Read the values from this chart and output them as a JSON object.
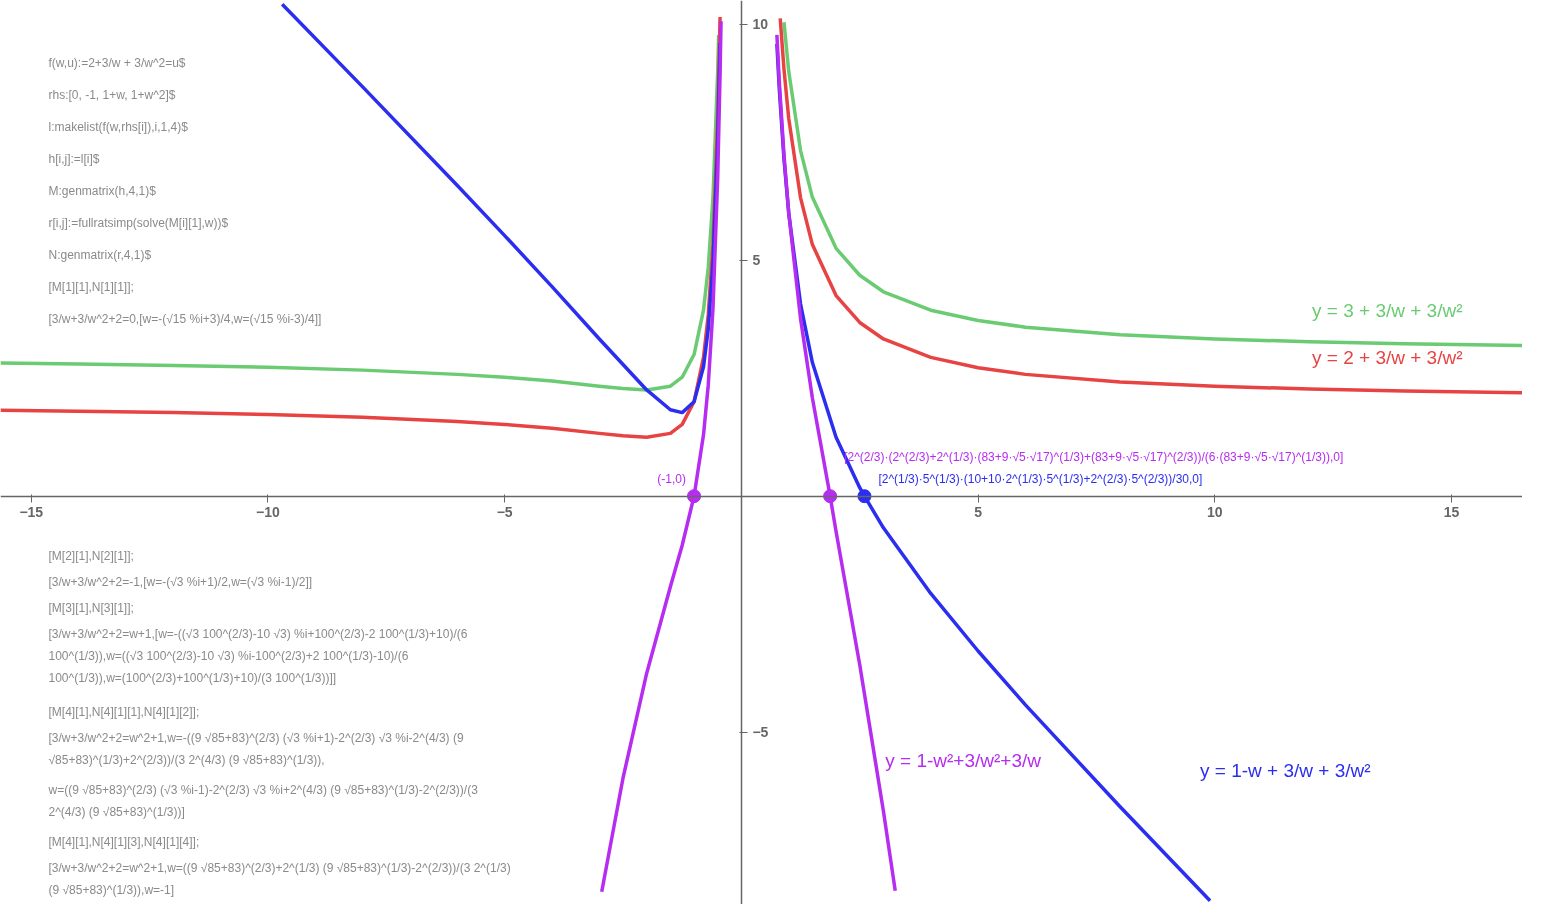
{
  "chart_data": {
    "type": "line",
    "xlim": [
      -15.65,
      16.5
    ],
    "ylim": [
      -8.65,
      10.5
    ],
    "xticks": [
      -15,
      -10,
      -5,
      5,
      10,
      15
    ],
    "yticks": [
      -5,
      5,
      10
    ],
    "grid": false,
    "series": [
      {
        "name": "y = 3 + 3/w + 3/w²",
        "color": "#6acb73",
        "marker": "none",
        "x": [
          -15.65,
          -14,
          -12,
          -10,
          -8,
          -6,
          -5,
          -4,
          -3,
          -2.5,
          -2,
          -1.5,
          -1.25,
          -1,
          -0.8,
          -0.7,
          -0.6,
          -0.5,
          -0.48,
          null,
          0.9,
          1,
          1.25,
          1.5,
          2,
          2.5,
          3,
          4,
          5,
          6,
          8,
          10,
          12,
          14,
          16.5
        ],
        "values": [
          2.82,
          2.8,
          2.77,
          2.73,
          2.67,
          2.58,
          2.52,
          2.44,
          2.33,
          2.28,
          2.25,
          2.33,
          2.52,
          3,
          3.94,
          4.84,
          6.33,
          9,
          9.77,
          null,
          10.04,
          9,
          7.32,
          6.33,
          5.25,
          4.68,
          4.33,
          3.94,
          3.72,
          3.58,
          3.42,
          3.33,
          3.27,
          3.23,
          3.19
        ]
      },
      {
        "name": "y = 2 + 3/w + 3/w²",
        "color": "#e84343",
        "marker": "none",
        "x": [
          -15.65,
          -14,
          -12,
          -10,
          -8,
          -6,
          -5,
          -4,
          -3,
          -2.5,
          -2,
          -1.5,
          -1.25,
          -1,
          -0.8,
          -0.7,
          -0.6,
          -0.5,
          -0.45,
          null,
          0.82,
          0.9,
          1,
          1.25,
          1.5,
          2,
          2.5,
          3,
          4,
          5,
          6,
          8,
          10,
          12,
          14,
          16.5
        ],
        "values": [
          1.82,
          1.8,
          1.77,
          1.73,
          1.67,
          1.58,
          1.52,
          1.44,
          1.33,
          1.28,
          1.25,
          1.33,
          1.52,
          2,
          2.94,
          3.84,
          5.33,
          8,
          10.15,
          null,
          10.12,
          9.04,
          8,
          6.32,
          5.33,
          4.25,
          3.68,
          3.33,
          2.94,
          2.72,
          2.58,
          2.42,
          2.33,
          2.27,
          2.23,
          2.19
        ]
      },
      {
        "name": "y = 1-w + 3/w + 3/w²",
        "color": "#2b2ef0",
        "marker": "none",
        "x": [
          -9.7,
          -8,
          -6,
          -5,
          -4,
          -3,
          -2,
          -1.5,
          -1.25,
          -1,
          -0.8,
          -0.7,
          -0.6,
          -0.5,
          -0.45,
          null,
          0.75,
          0.8,
          0.9,
          1,
          1.25,
          1.5,
          2,
          2.5,
          2.6,
          3,
          4,
          5,
          6,
          8,
          9.9
        ],
        "values": [
          10.42,
          8.67,
          6.58,
          5.52,
          4.44,
          3.33,
          2.25,
          1.83,
          1.77,
          2,
          2.74,
          3.54,
          4.93,
          7.5,
          9.6,
          null,
          9.58,
          8.64,
          7.14,
          6,
          4.07,
          2.83,
          1.25,
          0.18,
          0,
          -0.67,
          -2.06,
          -3.28,
          -4.42,
          -6.58,
          -8.57
        ]
      },
      {
        "name": "y = 1-w²+3/w²+3/w",
        "color": "#b62cf0",
        "marker": "none",
        "x": [
          -2.95,
          -2.5,
          -2,
          -1.5,
          -1.25,
          -1,
          -0.8,
          -0.7,
          -0.6,
          -0.5,
          -0.45,
          -0.43,
          null,
          0.75,
          0.8,
          0.9,
          1,
          1.25,
          1.5,
          1.875,
          2,
          2.5,
          3,
          3.25
        ],
        "values": [
          -8.38,
          -5.97,
          -3.75,
          -1.92,
          -1.04,
          0,
          1.3,
          2.35,
          3.97,
          6.75,
          8.95,
          10.06,
          null,
          9.77,
          8.8,
          7.23,
          6,
          3.76,
          2.08,
          0,
          -0.75,
          -3.57,
          -6.67,
          -8.36
        ]
      },
      {
        "type": "scatter",
        "color": "#b62cf0",
        "marker": "circle",
        "x": [
          -1,
          1.875
        ],
        "values": [
          0,
          0
        ]
      },
      {
        "type": "scatter",
        "color": "#2b2ef0",
        "marker": "circle",
        "x": [
          2.6
        ],
        "values": [
          0
        ]
      }
    ],
    "annotations": [
      "f(w,u):=2+3/w + 3/w^2=u$",
      "rhs:[0, -1, 1+w, 1+w^2]$",
      "l:makelist(f(w,rhs[i]),i,1,4)$",
      "h[i,j]:=l[i]$",
      "M:genmatrix(h,4,1)$",
      "r[i,j]:=fullratsimp(solve(M[i][1],w))$",
      "N:genmatrix(r,4,1)$",
      "[M[1][1],N[1][1]];",
      "[3/w+3/w^2+2=0,[w=-(√15 %i+3)/4,w=(√15 %i-3)/4]]",
      "[M[2][1],N[2][1]];",
      "[3/w+3/w^2+2=-1,[w=-(√3 %i+1)/2,w=(√3 %i-1)/2]]",
      "[M[3][1],N[3][1]];",
      "[3/w+3/w^2+2=w+1,[w=-((√3 100^(2/3)-10 √3) %i+100^(2/3)-2 100^(1/3)+10)/(6 100^(1/3)),w=((√3 100^(2/3)-10 √3) %i-100^(2/3)+2 100^(1/3)-10)/(6 100^(1/3)),w=(100^(2/3)+100^(1/3)+10)/(3 100^(1/3))]]",
      "[M[4][1],N[4][1][1],N[4][1][2]];",
      "[3/w+3/w^2+2=w^2+1,w=-((9 √85+83)^(2/3) (√3 %i+1)-2^(2/3) √3 %i-2^(4/3) (9 √85+83)^(1/3)+2^(2/3))/(3 2^(4/3) (9 √85+83)^(1/3)),",
      "w=((9 √85+83)^(2/3) (√3 %i-1)-2^(2/3) √3 %i+2^(4/3) (9 √85+83)^(1/3)-2^(2/3))/(3 2^(4/3) (9 √85+83)^(1/3))]",
      "[M[4][1],N[4][1][3],N[4][1][4]];",
      "[3/w+3/w^2+2=w^2+1,w=((9 √85+83)^(2/3)+2^(1/3) (9 √85+83)^(1/3)-2^(2/3))/(3 2^(1/3) (9 √85+83)^(1/3)),w=-1]",
      {
        "text": "(-1,0)",
        "x": -1,
        "y": 0
      },
      {
        "text": "[2^(2/3)·(2^(2/3)+2^(1/3)·(83+9·√5·√17)^(1/3)+(83+9·√5·√17)^(2/3))/(6·(83+9·√5·√17)^(1/3)),0]",
        "x": 1.875,
        "y": 0
      },
      {
        "text": "[2^(1/3)·5^(1/3)·(10+10·2^(1/3)·5^(1/3)+2^(2/3)·5^(2/3))/30,0]",
        "x": 2.6,
        "y": 0
      }
    ]
  }
}
